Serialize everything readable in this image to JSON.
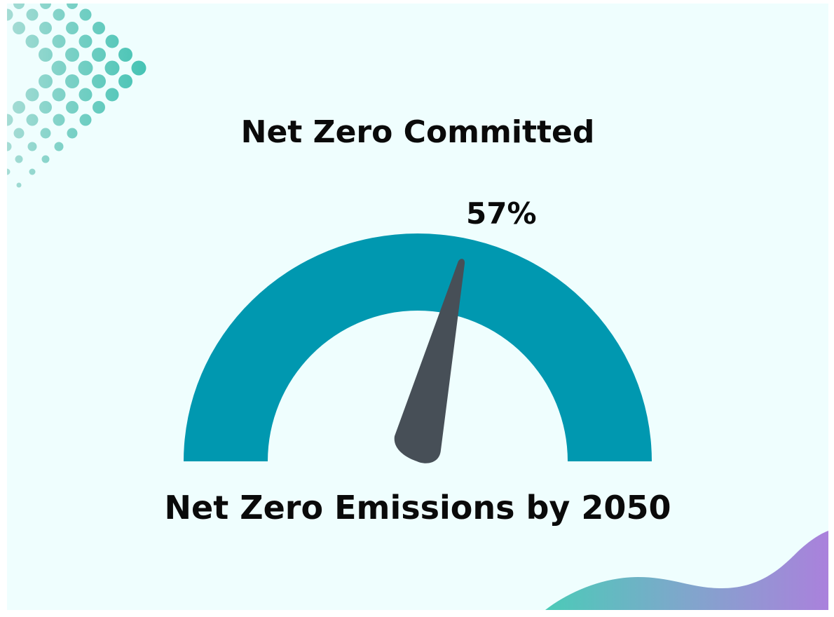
{
  "chart_data": {
    "type": "gauge",
    "title": "Net Zero Committed",
    "value": 57,
    "value_label": "57%",
    "min": 0,
    "max": 100,
    "caption": "Net Zero Emissions by 2050",
    "colors": {
      "arc": "#0098b0",
      "needle": "#474f57",
      "background": "#effefe"
    }
  },
  "header": {
    "title": "Net Zero Committed"
  },
  "gauge": {
    "value_label": "57%",
    "caption": "Net Zero Emissions by 2050"
  },
  "decor": {
    "dots_color_dark": "#48c4b6",
    "dots_color_light": "#9ad9d2",
    "wave_gradient": [
      "#4ec9b9",
      "#a77fdb"
    ]
  }
}
